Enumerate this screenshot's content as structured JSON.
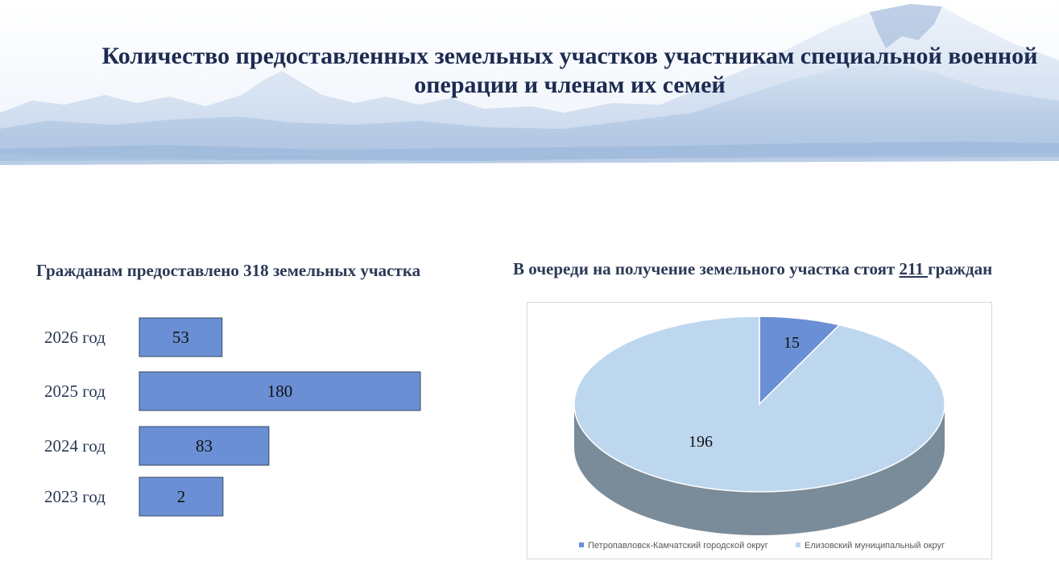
{
  "title": "Количество предоставленных земельных участков участникам специальной военной операции и членам их семей",
  "left_section": {
    "text": "Гражданам предоставлено 318 земельных участка"
  },
  "right_section": {
    "prefix": "В очереди на получение земельного участка стоят ",
    "count": "211 ",
    "suffix": "граждан"
  },
  "colors": {
    "bar_fill": "#6a8fd4",
    "pie_small": "#6a8fd4",
    "pie_large": "#bdd7ee",
    "pie_side": "#7a8b99",
    "title": "#1d2b52"
  },
  "chart_data": [
    {
      "type": "bar",
      "orientation": "horizontal",
      "categories": [
        "2026 год",
        "2025 год",
        "2024 год",
        "2023 год"
      ],
      "values": [
        53,
        180,
        83,
        2
      ],
      "data_labels": [
        "53",
        "180",
        "83",
        "2"
      ]
    },
    {
      "type": "pie",
      "style": "3d",
      "labels": [
        "Петропавловск-Камчатский городской округ",
        "Елизовский муниципальный округ"
      ],
      "values": [
        15,
        196
      ],
      "data_labels": [
        "15",
        "196"
      ],
      "legend_position": "bottom"
    }
  ]
}
